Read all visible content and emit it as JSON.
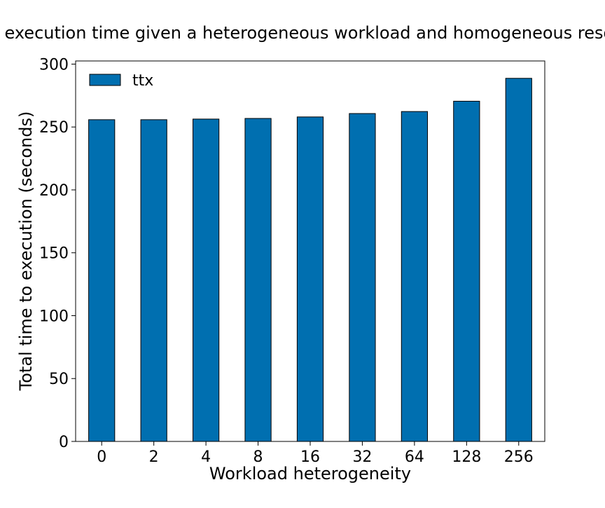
{
  "chart_data": {
    "type": "bar",
    "title": "Total execution time given a heterogeneous workload and homogeneous resources",
    "xlabel": "Workload heterogeneity",
    "ylabel": "Total time to execution (seconds)",
    "categories": [
      "0",
      "2",
      "4",
      "8",
      "16",
      "32",
      "64",
      "128",
      "256"
    ],
    "series": [
      {
        "name": "ttx",
        "color": "#006fb0",
        "values": [
          255.8,
          255.8,
          256.3,
          256.8,
          258.0,
          260.7,
          262.3,
          270.5,
          288.7
        ]
      }
    ],
    "ylim": [
      0,
      300
    ],
    "yticks": [
      0,
      50,
      100,
      150,
      200,
      250,
      300
    ],
    "ytick_labels": [
      "0",
      "50",
      "100",
      "150",
      "200",
      "250",
      "300"
    ],
    "grid": false,
    "legend_position": "top-left"
  }
}
